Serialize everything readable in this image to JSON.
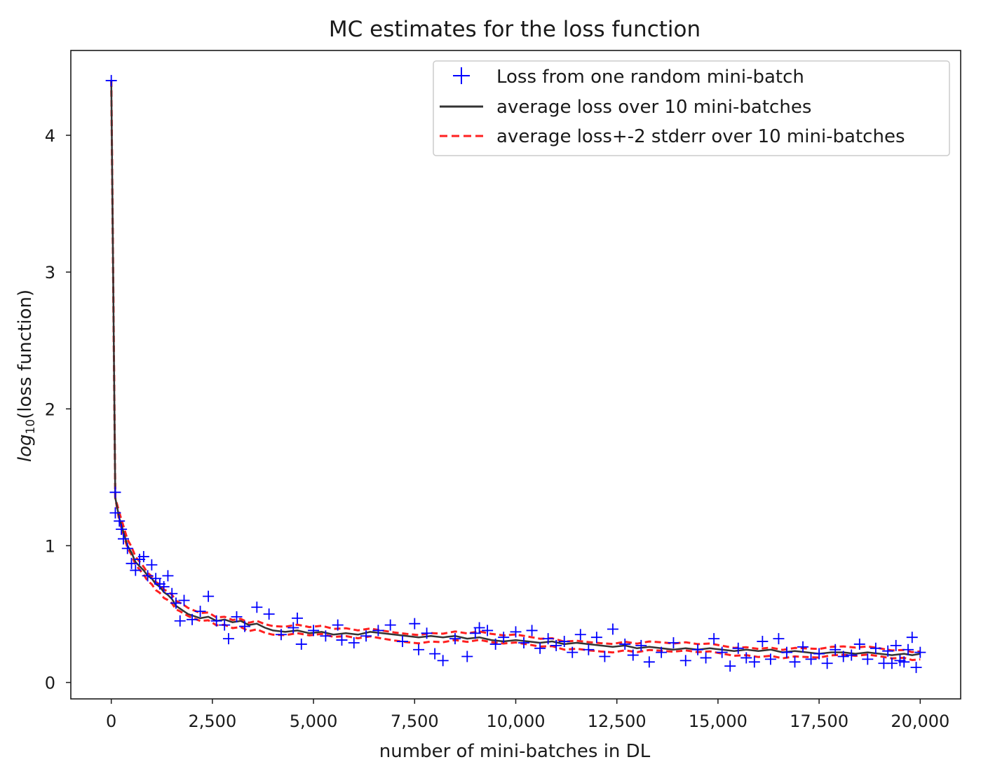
{
  "chart_data": {
    "type": "line",
    "title": "MC estimates for the loss function",
    "xlabel": "number of mini-batches in DL",
    "ylabel_prefix": "log",
    "ylabel_sub": "10",
    "ylabel_suffix": "(loss function)",
    "xlim": [
      -1000,
      21000
    ],
    "ylim": [
      -0.12,
      4.62
    ],
    "xticks": [
      0,
      2500,
      5000,
      7500,
      10000,
      12500,
      15000,
      17500,
      20000
    ],
    "xtick_labels": [
      "0",
      "2,500",
      "5,000",
      "7,500",
      "10,000",
      "12,500",
      "15,000",
      "17,500",
      "20,000"
    ],
    "yticks": [
      0,
      1,
      2,
      3,
      4
    ],
    "ytick_labels": [
      "0",
      "1",
      "2",
      "3",
      "4"
    ],
    "legend_position": "top-right",
    "series": [
      {
        "name": "Loss from one random mini-batch",
        "style": "markers",
        "marker": "+",
        "color": "#0000ff",
        "x": [
          0,
          100,
          100,
          200,
          250,
          300,
          400,
          500,
          600,
          700,
          800,
          900,
          1000,
          1100,
          1200,
          1300,
          1400,
          1500,
          1600,
          1700,
          1800,
          2000,
          2200,
          2400,
          2600,
          2800,
          2900,
          3100,
          3300,
          3600,
          3900,
          4200,
          4500,
          4600,
          4700,
          5000,
          5300,
          5600,
          5700,
          6000,
          6300,
          6600,
          6900,
          7200,
          7500,
          7600,
          7800,
          8000,
          8200,
          8500,
          8800,
          9000,
          9100,
          9300,
          9500,
          9700,
          10000,
          10200,
          10400,
          10600,
          10800,
          11000,
          11200,
          11400,
          11600,
          11800,
          12000,
          12200,
          12400,
          12700,
          12900,
          13100,
          13300,
          13600,
          13900,
          14200,
          14500,
          14700,
          14900,
          15100,
          15300,
          15500,
          15700,
          15900,
          16100,
          16300,
          16500,
          16700,
          16900,
          17100,
          17300,
          17500,
          17700,
          17900,
          18100,
          18300,
          18500,
          18700,
          18900,
          19100,
          19200,
          19300,
          19400,
          19500,
          19600,
          19700,
          19800,
          19900,
          20000
        ],
        "y": [
          4.4,
          1.39,
          1.24,
          1.18,
          1.12,
          1.05,
          0.98,
          0.87,
          0.82,
          0.9,
          0.92,
          0.78,
          0.86,
          0.76,
          0.72,
          0.7,
          0.78,
          0.65,
          0.58,
          0.45,
          0.6,
          0.46,
          0.52,
          0.63,
          0.45,
          0.42,
          0.32,
          0.48,
          0.41,
          0.55,
          0.5,
          0.35,
          0.4,
          0.47,
          0.28,
          0.38,
          0.34,
          0.42,
          0.31,
          0.29,
          0.34,
          0.38,
          0.42,
          0.3,
          0.43,
          0.24,
          0.36,
          0.21,
          0.16,
          0.32,
          0.19,
          0.36,
          0.4,
          0.38,
          0.28,
          0.33,
          0.37,
          0.29,
          0.38,
          0.25,
          0.32,
          0.27,
          0.3,
          0.22,
          0.35,
          0.24,
          0.33,
          0.19,
          0.39,
          0.28,
          0.2,
          0.27,
          0.15,
          0.22,
          0.29,
          0.16,
          0.24,
          0.18,
          0.32,
          0.22,
          0.12,
          0.25,
          0.18,
          0.15,
          0.3,
          0.17,
          0.32,
          0.22,
          0.15,
          0.26,
          0.17,
          0.21,
          0.14,
          0.24,
          0.19,
          0.2,
          0.28,
          0.17,
          0.25,
          0.14,
          0.23,
          0.14,
          0.27,
          0.16,
          0.15,
          0.24,
          0.33,
          0.11,
          0.22
        ]
      },
      {
        "name": "average loss over 10 mini-batches",
        "style": "solid-line",
        "color": "#333333",
        "x": [
          0,
          100,
          200,
          300,
          400,
          500,
          600,
          700,
          800,
          900,
          1000,
          1100,
          1200,
          1300,
          1400,
          1500,
          1600,
          1700,
          1800,
          1900,
          2000,
          2200,
          2400,
          2600,
          2800,
          3000,
          3200,
          3400,
          3600,
          3800,
          4000,
          4300,
          4600,
          4900,
          5200,
          5500,
          5800,
          6100,
          6400,
          6700,
          7000,
          7300,
          7600,
          7900,
          8200,
          8500,
          8800,
          9100,
          9400,
          9700,
          10000,
          10300,
          10600,
          10900,
          11200,
          11500,
          11800,
          12100,
          12400,
          12700,
          13000,
          13300,
          13600,
          13900,
          14200,
          14500,
          14800,
          15100,
          15400,
          15700,
          16000,
          16300,
          16600,
          16900,
          17200,
          17500,
          17800,
          18100,
          18400,
          18700,
          19000,
          19300,
          19600,
          19800,
          20000
        ],
        "y": [
          4.4,
          1.35,
          1.2,
          1.1,
          1.0,
          0.95,
          0.88,
          0.85,
          0.82,
          0.78,
          0.76,
          0.72,
          0.7,
          0.66,
          0.64,
          0.61,
          0.56,
          0.54,
          0.52,
          0.5,
          0.49,
          0.47,
          0.48,
          0.45,
          0.46,
          0.44,
          0.45,
          0.42,
          0.43,
          0.4,
          0.38,
          0.37,
          0.38,
          0.36,
          0.37,
          0.35,
          0.36,
          0.35,
          0.37,
          0.36,
          0.35,
          0.34,
          0.33,
          0.34,
          0.33,
          0.34,
          0.32,
          0.33,
          0.31,
          0.3,
          0.31,
          0.3,
          0.29,
          0.3,
          0.28,
          0.29,
          0.28,
          0.27,
          0.26,
          0.27,
          0.25,
          0.26,
          0.25,
          0.24,
          0.25,
          0.24,
          0.25,
          0.24,
          0.23,
          0.24,
          0.23,
          0.24,
          0.22,
          0.23,
          0.22,
          0.21,
          0.22,
          0.22,
          0.21,
          0.22,
          0.21,
          0.2,
          0.21,
          0.2,
          0.21
        ]
      },
      {
        "name": "average loss+-2 stderr over 10 mini-batches",
        "style": "dashed-line",
        "color": "#ff2020",
        "offset": 0.03
      }
    ]
  }
}
